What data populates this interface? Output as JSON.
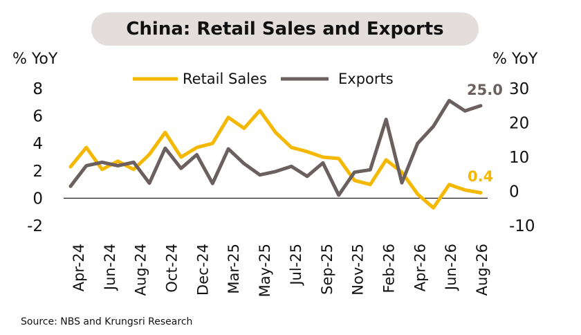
{
  "title": "China: Retail Sales and Exports",
  "source": "Source: NBS and Krungsri Research",
  "colors": {
    "retail": "#f5b800",
    "exports": "#6b5f60",
    "pill": "#e3dddb"
  },
  "chart_data": {
    "type": "line",
    "title": "China: Retail Sales and Exports",
    "ylabel_left": "% YoY",
    "ylabel_right": "% YoY",
    "ylim_left": [
      -2,
      8
    ],
    "ylim_right": [
      -10,
      30
    ],
    "yticks_left": [
      "8",
      "6",
      "4",
      "2",
      "0",
      "-2"
    ],
    "yticks_right": [
      "30",
      "20",
      "10",
      "0",
      "-10"
    ],
    "x_tick_labels": [
      "Apr-24",
      "Jun-24",
      "Aug-24",
      "Oct-24",
      "Dec-24",
      "Mar-25",
      "May-25",
      "Jul-25",
      "Sep-25",
      "Nov-25",
      "Feb-26",
      "Apr-26",
      "Jun-26",
      "Aug-26"
    ],
    "legend_position": "top-center",
    "annotations": {
      "retail_last": "0.4",
      "exports_last": "25.0"
    },
    "series": [
      {
        "name": "Retail Sales",
        "axis": "left",
        "values": [
          2.3,
          3.7,
          2.1,
          2.7,
          2.1,
          3.2,
          4.8,
          3.0,
          3.7,
          4.0,
          5.9,
          5.1,
          6.4,
          4.8,
          3.7,
          3.4,
          3.0,
          2.9,
          1.3,
          1.0,
          2.8,
          1.9,
          0.3,
          -0.7,
          1.0,
          0.6,
          0.4
        ]
      },
      {
        "name": "Exports",
        "axis": "right",
        "values": [
          1.5,
          7.5,
          8.5,
          7.5,
          8.5,
          2.4,
          12.6,
          6.7,
          10.7,
          2.3,
          12.4,
          8.1,
          4.8,
          5.8,
          7.3,
          4.4,
          8.3,
          -1.1,
          5.6,
          6.3,
          21.0,
          2.5,
          14.0,
          19.0,
          26.5,
          23.5,
          25.0
        ]
      }
    ]
  }
}
